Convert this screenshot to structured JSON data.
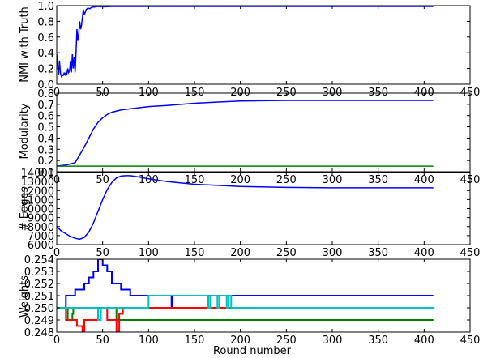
{
  "figure": {
    "xlabel": "Round number",
    "x_ticks": [
      0,
      50,
      100,
      150,
      200,
      250,
      300,
      350,
      400,
      450
    ],
    "xlim": [
      0,
      450
    ]
  },
  "chart_data": [
    {
      "type": "line",
      "ylabel": "NMI with Truth",
      "ylim": [
        0.0,
        1.0
      ],
      "y_ticks": [
        "0.0",
        "0.2",
        "0.4",
        "0.6",
        "0.8",
        "1.0"
      ],
      "series": [
        {
          "color": "#0000ff",
          "x": [
            0,
            1,
            2,
            3,
            4,
            5,
            6,
            7,
            8,
            9,
            10,
            11,
            12,
            13,
            14,
            15,
            16,
            17,
            18,
            19,
            20,
            21,
            22,
            23,
            24,
            25,
            26,
            27,
            28,
            29,
            30,
            32,
            34,
            36,
            38,
            40,
            45,
            50,
            60,
            80,
            100,
            150,
            200,
            300,
            410
          ],
          "y": [
            0.38,
            0.25,
            0.12,
            0.3,
            0.15,
            0.1,
            0.12,
            0.11,
            0.14,
            0.12,
            0.15,
            0.13,
            0.2,
            0.15,
            0.17,
            0.3,
            0.15,
            0.38,
            0.2,
            0.35,
            0.15,
            0.4,
            0.7,
            0.55,
            0.65,
            0.8,
            0.7,
            0.75,
            0.85,
            0.95,
            0.88,
            0.95,
            0.97,
            0.96,
            0.98,
            0.98,
            0.99,
            0.985,
            0.99,
            0.99,
            0.99,
            0.99,
            0.99,
            0.99,
            0.99
          ]
        }
      ]
    },
    {
      "type": "line",
      "ylabel": "Modularity",
      "ylim": [
        0.1,
        0.8
      ],
      "y_ticks": [
        "0.1",
        "0.2",
        "0.3",
        "0.4",
        "0.5",
        "0.6",
        "0.7",
        "0.8"
      ],
      "series": [
        {
          "color": "#0000ff",
          "x": [
            0,
            10,
            20,
            25,
            30,
            35,
            40,
            45,
            50,
            55,
            60,
            70,
            80,
            90,
            100,
            120,
            150,
            200,
            250,
            300,
            350,
            410
          ],
          "y": [
            0.15,
            0.16,
            0.18,
            0.25,
            0.32,
            0.4,
            0.48,
            0.54,
            0.58,
            0.61,
            0.63,
            0.65,
            0.66,
            0.67,
            0.68,
            0.69,
            0.71,
            0.73,
            0.735,
            0.735,
            0.735,
            0.735
          ]
        },
        {
          "color": "#008000",
          "x": [
            0,
            410
          ],
          "y": [
            0.15,
            0.15
          ]
        }
      ]
    },
    {
      "type": "line",
      "ylabel": "# Edges",
      "ylim": [
        6000,
        14000
      ],
      "y_ticks": [
        "6000",
        "7000",
        "8000",
        "9000",
        "10000",
        "11000",
        "12000",
        "13000",
        "14000"
      ],
      "series": [
        {
          "color": "#0000ff",
          "x": [
            0,
            5,
            10,
            15,
            20,
            25,
            30,
            35,
            40,
            45,
            50,
            55,
            60,
            65,
            70,
            75,
            80,
            90,
            100,
            120,
            150,
            200,
            250,
            300,
            350,
            410
          ],
          "y": [
            8000,
            7500,
            7200,
            6900,
            6700,
            6600,
            6800,
            7400,
            8400,
            9700,
            11000,
            12100,
            12900,
            13400,
            13600,
            13650,
            13650,
            13500,
            13300,
            13000,
            12700,
            12450,
            12350,
            12300,
            12300,
            12300
          ]
        }
      ]
    },
    {
      "type": "line",
      "ylabel": "Weights",
      "ylim": [
        0.248,
        0.254
      ],
      "y_ticks": [
        "0.248",
        "0.249",
        "0.250",
        "0.251",
        "0.252",
        "0.253",
        "0.254"
      ],
      "series": [
        {
          "color": "#0000ff",
          "x": [
            0,
            10,
            10,
            20,
            20,
            30,
            30,
            35,
            35,
            40,
            40,
            45,
            45,
            50,
            50,
            55,
            55,
            60,
            60,
            70,
            70,
            80,
            80,
            125,
            125,
            126,
            126,
            410
          ],
          "y": [
            0.25,
            0.25,
            0.251,
            0.251,
            0.2515,
            0.2515,
            0.252,
            0.252,
            0.2525,
            0.2525,
            0.253,
            0.253,
            0.254,
            0.254,
            0.2535,
            0.2535,
            0.253,
            0.253,
            0.252,
            0.252,
            0.2515,
            0.2515,
            0.251,
            0.251,
            0.25,
            0.25,
            0.251,
            0.251
          ]
        },
        {
          "color": "#008000",
          "x": [
            0,
            12,
            12,
            17,
            17,
            18,
            18,
            45,
            45,
            48,
            48,
            65,
            65,
            68,
            68,
            410
          ],
          "y": [
            0.25,
            0.25,
            0.249,
            0.249,
            0.2495,
            0.2495,
            0.25,
            0.25,
            0.249,
            0.249,
            0.25,
            0.25,
            0.249,
            0.249,
            0.249,
            0.249
          ]
        },
        {
          "color": "#ff0000",
          "x": [
            0,
            10,
            10,
            22,
            22,
            28,
            28,
            30,
            30,
            45,
            45,
            55,
            55,
            65,
            65,
            68,
            68,
            72,
            72,
            95,
            95,
            125,
            125,
            127,
            127,
            165,
            165,
            410
          ],
          "y": [
            0.25,
            0.25,
            0.249,
            0.249,
            0.2485,
            0.2485,
            0.248,
            0.248,
            0.249,
            0.249,
            0.25,
            0.25,
            0.249,
            0.249,
            0.248,
            0.248,
            0.2495,
            0.2495,
            0.25,
            0.25,
            0.25,
            0.25,
            0.25,
            0.25,
            0.25,
            0.25,
            0.25,
            0.25
          ]
        },
        {
          "color": "#00bfbf",
          "x": [
            0,
            45,
            45,
            48,
            48,
            65,
            65,
            100,
            100,
            165,
            165,
            167,
            167,
            175,
            175,
            177,
            177,
            185,
            185,
            187,
            187,
            190,
            190,
            193,
            193,
            410
          ],
          "y": [
            0.25,
            0.25,
            0.249,
            0.249,
            0.25,
            0.25,
            0.25,
            0.25,
            0.251,
            0.251,
            0.25,
            0.25,
            0.251,
            0.251,
            0.25,
            0.25,
            0.251,
            0.251,
            0.25,
            0.25,
            0.251,
            0.251,
            0.25,
            0.25,
            0.25,
            0.25
          ]
        }
      ]
    }
  ]
}
